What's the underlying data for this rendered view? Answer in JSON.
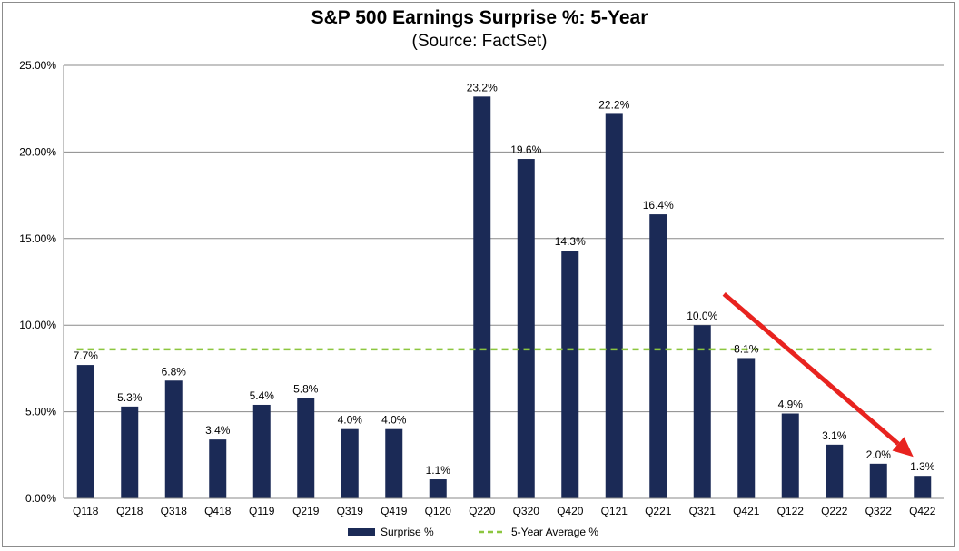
{
  "chart_data": {
    "type": "bar",
    "title": "S&P 500 Earnings Surprise %: 5-Year",
    "subtitle": "(Source: FactSet)",
    "categories": [
      "Q118",
      "Q218",
      "Q318",
      "Q418",
      "Q119",
      "Q219",
      "Q319",
      "Q419",
      "Q120",
      "Q220",
      "Q320",
      "Q420",
      "Q121",
      "Q221",
      "Q321",
      "Q421",
      "Q122",
      "Q222",
      "Q322",
      "Q422"
    ],
    "series": [
      {
        "name": "Surprise %",
        "color": "#1b2a56",
        "values": [
          7.7,
          5.3,
          6.8,
          3.4,
          5.4,
          5.8,
          4.0,
          4.0,
          1.1,
          23.2,
          19.6,
          14.3,
          22.2,
          16.4,
          10.0,
          8.1,
          4.9,
          3.1,
          2.0,
          1.3
        ],
        "labels": [
          "7.7%",
          "5.3%",
          "6.8%",
          "3.4%",
          "5.4%",
          "5.8%",
          "4.0%",
          "4.0%",
          "1.1%",
          "23.2%",
          "19.6%",
          "14.3%",
          "22.2%",
          "16.4%",
          "10.0%",
          "8.1%",
          "4.9%",
          "3.1%",
          "2.0%",
          "1.3%"
        ]
      },
      {
        "name": "5-Year Average %",
        "color": "#8cc63f",
        "style": "dashed",
        "value": 8.6
      }
    ],
    "ylim": [
      0,
      25
    ],
    "yticks": [
      0,
      5,
      10,
      15,
      20,
      25
    ],
    "ytick_labels": [
      "0.00%",
      "5.00%",
      "10.00%",
      "15.00%",
      "20.00%",
      "25.00%"
    ],
    "grid": true,
    "legend": "bottom",
    "annotation": {
      "type": "arrow",
      "color": "#e8231f",
      "from_category": "Q321",
      "to_category": "Q422",
      "direction": "down"
    }
  }
}
